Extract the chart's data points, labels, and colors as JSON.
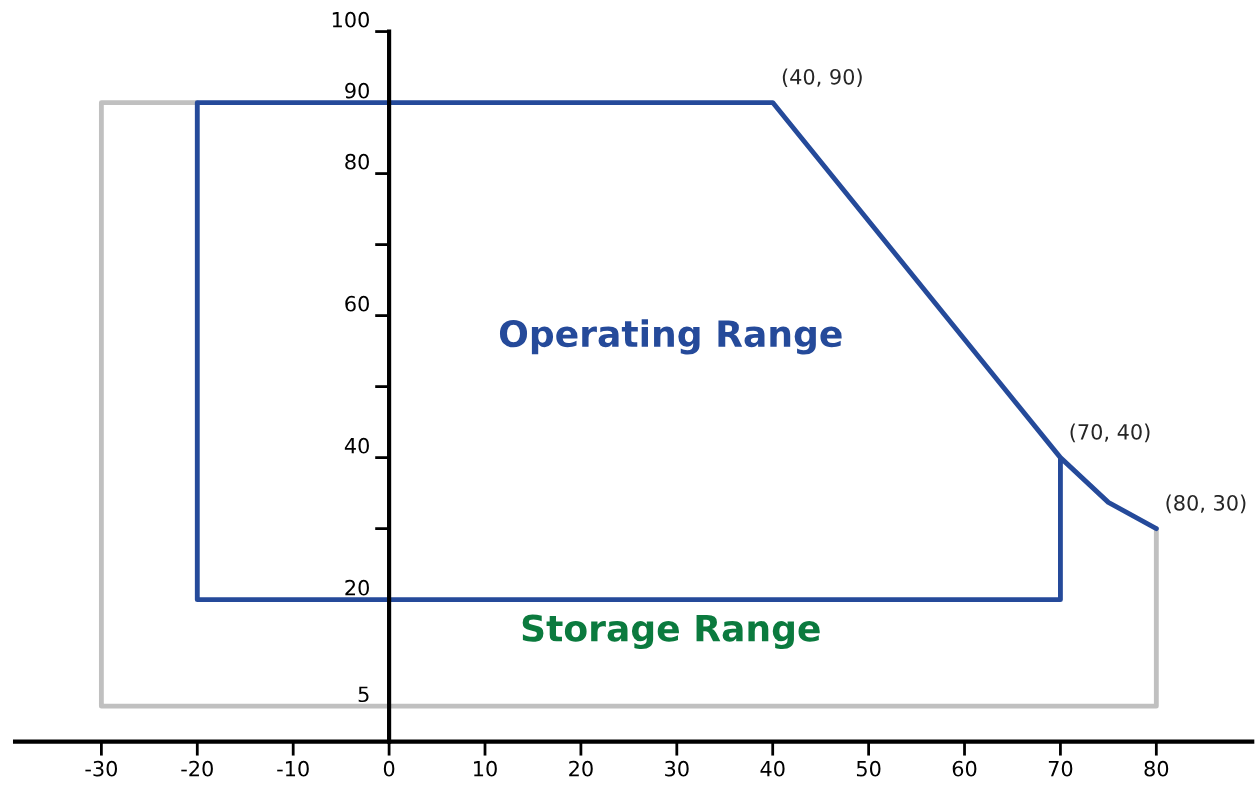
{
  "chart_data": {
    "type": "line",
    "series": [
      {
        "name": null,
        "color": "#c0c0c0",
        "x": [
          -20,
          -30,
          -30,
          80,
          80
        ],
        "values": [
          90,
          90,
          5,
          5,
          30
        ]
      },
      {
        "name": null,
        "color": "#254a9a",
        "x": [
          80,
          75,
          70,
          70,
          -20,
          -20,
          40,
          70
        ],
        "values": [
          30,
          33.7,
          40,
          20,
          20,
          90,
          90,
          40
        ]
      }
    ],
    "annotations": [
      "Operating Range",
      "Storage Range",
      {
        "text": "(40, 90)",
        "x": 40,
        "y": 90
      },
      {
        "text": "(70, 40)",
        "x": 70,
        "y": 40
      },
      {
        "text": "(80, 30)",
        "x": 80,
        "y": 30
      }
    ],
    "xlim": [
      -39,
      90
    ],
    "ylim": [
      0,
      100
    ],
    "xticks": [
      -30,
      -20,
      -10,
      0,
      10,
      20,
      30,
      40,
      50,
      60,
      70,
      80
    ],
    "yticks": [
      5,
      20,
      {
        "value": 30,
        "label": null
      },
      40,
      {
        "value": 50,
        "label": null
      },
      60,
      {
        "value": 70,
        "label": null
      },
      80,
      90,
      100
    ],
    "grid": false,
    "marker": "none",
    "line_style": "solid"
  }
}
